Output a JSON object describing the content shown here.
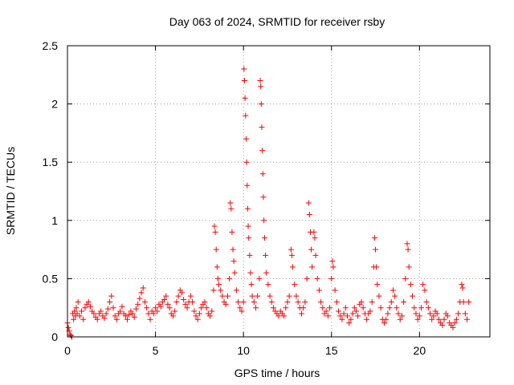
{
  "chart_data": {
    "type": "scatter",
    "title": "Day 063 of 2024, SRMTID for receiver rsby",
    "xlabel": "GPS time / hours",
    "ylabel": "SRMTID / TECUs",
    "xlim": [
      0,
      24
    ],
    "ylim": [
      0,
      2.5
    ],
    "xticks": [
      0,
      5,
      10,
      15,
      20
    ],
    "xtick_labels": [
      "0",
      "5",
      "10",
      "15",
      "20"
    ],
    "yticks": [
      0,
      0.5,
      1,
      1.5,
      2,
      2.5
    ],
    "ytick_labels": [
      "0",
      "0.5",
      "1",
      "1.5",
      "2",
      "2.5"
    ],
    "grid": true,
    "marker": "+",
    "color": "#ff0000",
    "series": [
      {
        "name": "SRMTID",
        "points": [
          [
            0.0,
            0.12
          ],
          [
            0.05,
            0.08
          ],
          [
            0.1,
            0.05
          ],
          [
            0.15,
            0.02
          ],
          [
            0.2,
            0.01
          ],
          [
            0.25,
            0.0
          ],
          [
            0.3,
            0.2
          ],
          [
            0.35,
            0.15
          ],
          [
            0.4,
            0.22
          ],
          [
            0.45,
            0.18
          ],
          [
            0.5,
            0.25
          ],
          [
            0.55,
            0.2
          ],
          [
            0.6,
            0.3
          ],
          [
            0.7,
            0.18
          ],
          [
            0.8,
            0.22
          ],
          [
            0.9,
            0.15
          ],
          [
            1.0,
            0.25
          ],
          [
            1.1,
            0.28
          ],
          [
            1.2,
            0.3
          ],
          [
            1.3,
            0.26
          ],
          [
            1.4,
            0.22
          ],
          [
            1.5,
            0.2
          ],
          [
            1.6,
            0.17
          ],
          [
            1.7,
            0.15
          ],
          [
            1.8,
            0.2
          ],
          [
            1.9,
            0.22
          ],
          [
            2.0,
            0.18
          ],
          [
            2.1,
            0.16
          ],
          [
            2.2,
            0.2
          ],
          [
            2.3,
            0.24
          ],
          [
            2.4,
            0.3
          ],
          [
            2.5,
            0.35
          ],
          [
            2.6,
            0.25
          ],
          [
            2.7,
            0.18
          ],
          [
            2.8,
            0.15
          ],
          [
            2.9,
            0.2
          ],
          [
            3.0,
            0.22
          ],
          [
            3.1,
            0.26
          ],
          [
            3.2,
            0.2
          ],
          [
            3.3,
            0.18
          ],
          [
            3.4,
            0.15
          ],
          [
            3.5,
            0.19
          ],
          [
            3.6,
            0.22
          ],
          [
            3.7,
            0.2
          ],
          [
            3.8,
            0.17
          ],
          [
            3.9,
            0.24
          ],
          [
            4.0,
            0.28
          ],
          [
            4.1,
            0.33
          ],
          [
            4.2,
            0.38
          ],
          [
            4.3,
            0.42
          ],
          [
            4.4,
            0.3
          ],
          [
            4.5,
            0.25
          ],
          [
            4.6,
            0.2
          ],
          [
            4.7,
            0.15
          ],
          [
            4.8,
            0.22
          ],
          [
            4.9,
            0.2
          ],
          [
            5.0,
            0.25
          ],
          [
            5.1,
            0.22
          ],
          [
            5.2,
            0.28
          ],
          [
            5.3,
            0.26
          ],
          [
            5.4,
            0.3
          ],
          [
            5.5,
            0.32
          ],
          [
            5.6,
            0.35
          ],
          [
            5.7,
            0.28
          ],
          [
            5.8,
            0.25
          ],
          [
            5.9,
            0.2
          ],
          [
            6.0,
            0.18
          ],
          [
            6.1,
            0.22
          ],
          [
            6.2,
            0.3
          ],
          [
            6.3,
            0.35
          ],
          [
            6.4,
            0.4
          ],
          [
            6.5,
            0.38
          ],
          [
            6.6,
            0.32
          ],
          [
            6.7,
            0.28
          ],
          [
            6.8,
            0.25
          ],
          [
            6.9,
            0.3
          ],
          [
            7.0,
            0.35
          ],
          [
            7.1,
            0.3
          ],
          [
            7.2,
            0.22
          ],
          [
            7.3,
            0.18
          ],
          [
            7.4,
            0.15
          ],
          [
            7.5,
            0.2
          ],
          [
            7.6,
            0.25
          ],
          [
            7.7,
            0.28
          ],
          [
            7.8,
            0.3
          ],
          [
            7.9,
            0.25
          ],
          [
            8.0,
            0.2
          ],
          [
            8.1,
            0.18
          ],
          [
            8.2,
            0.22
          ],
          [
            8.3,
            0.4
          ],
          [
            8.35,
            0.95
          ],
          [
            8.4,
            0.9
          ],
          [
            8.45,
            0.75
          ],
          [
            8.5,
            0.6
          ],
          [
            8.55,
            0.5
          ],
          [
            8.6,
            0.45
          ],
          [
            8.7,
            0.4
          ],
          [
            8.8,
            0.35
          ],
          [
            8.9,
            0.3
          ],
          [
            9.0,
            0.28
          ],
          [
            9.1,
            0.35
          ],
          [
            9.2,
            0.5
          ],
          [
            9.25,
            1.15
          ],
          [
            9.3,
            1.1
          ],
          [
            9.35,
            0.9
          ],
          [
            9.4,
            0.75
          ],
          [
            9.45,
            0.65
          ],
          [
            9.5,
            0.55
          ],
          [
            9.6,
            0.4
          ],
          [
            9.7,
            0.3
          ],
          [
            9.8,
            0.25
          ],
          [
            9.9,
            0.22
          ],
          [
            10.0,
            0.3
          ],
          [
            10.03,
            2.3
          ],
          [
            10.06,
            2.2
          ],
          [
            10.09,
            2.05
          ],
          [
            10.12,
            1.9
          ],
          [
            10.15,
            1.7
          ],
          [
            10.18,
            1.5
          ],
          [
            10.21,
            1.3
          ],
          [
            10.24,
            1.1
          ],
          [
            10.27,
            0.95
          ],
          [
            10.3,
            0.85
          ],
          [
            10.35,
            0.7
          ],
          [
            10.4,
            0.55
          ],
          [
            10.45,
            0.45
          ],
          [
            10.5,
            0.35
          ],
          [
            10.6,
            0.3
          ],
          [
            10.7,
            0.25
          ],
          [
            10.8,
            0.35
          ],
          [
            10.9,
            0.5
          ],
          [
            10.95,
            2.2
          ],
          [
            10.98,
            2.15
          ],
          [
            11.01,
            2.0
          ],
          [
            11.04,
            1.8
          ],
          [
            11.07,
            1.6
          ],
          [
            11.1,
            1.4
          ],
          [
            11.13,
            1.2
          ],
          [
            11.16,
            1.0
          ],
          [
            11.2,
            0.85
          ],
          [
            11.25,
            0.7
          ],
          [
            11.3,
            0.55
          ],
          [
            11.4,
            0.45
          ],
          [
            11.5,
            0.35
          ],
          [
            11.6,
            0.3
          ],
          [
            11.7,
            0.25
          ],
          [
            11.8,
            0.22
          ],
          [
            11.9,
            0.2
          ],
          [
            12.0,
            0.18
          ],
          [
            12.1,
            0.22
          ],
          [
            12.2,
            0.2
          ],
          [
            12.3,
            0.18
          ],
          [
            12.4,
            0.25
          ],
          [
            12.5,
            0.3
          ],
          [
            12.6,
            0.35
          ],
          [
            12.7,
            0.75
          ],
          [
            12.75,
            0.7
          ],
          [
            12.8,
            0.6
          ],
          [
            12.9,
            0.45
          ],
          [
            13.0,
            0.35
          ],
          [
            13.1,
            0.3
          ],
          [
            13.2,
            0.25
          ],
          [
            13.3,
            0.2
          ],
          [
            13.4,
            0.25
          ],
          [
            13.5,
            0.3
          ],
          [
            13.6,
            0.5
          ],
          [
            13.7,
            1.15
          ],
          [
            13.75,
            1.05
          ],
          [
            13.8,
            0.9
          ],
          [
            13.85,
            0.75
          ],
          [
            13.9,
            0.6
          ],
          [
            14.0,
            0.9
          ],
          [
            14.05,
            0.85
          ],
          [
            14.1,
            0.7
          ],
          [
            14.2,
            0.5
          ],
          [
            14.3,
            0.4
          ],
          [
            14.4,
            0.3
          ],
          [
            14.5,
            0.25
          ],
          [
            14.6,
            0.2
          ],
          [
            14.7,
            0.22
          ],
          [
            14.8,
            0.18
          ],
          [
            14.9,
            0.25
          ],
          [
            15.0,
            0.5
          ],
          [
            15.05,
            0.65
          ],
          [
            15.1,
            0.6
          ],
          [
            15.2,
            0.4
          ],
          [
            15.3,
            0.3
          ],
          [
            15.4,
            0.22
          ],
          [
            15.5,
            0.18
          ],
          [
            15.6,
            0.15
          ],
          [
            15.7,
            0.2
          ],
          [
            15.8,
            0.25
          ],
          [
            15.9,
            0.18
          ],
          [
            16.0,
            0.12
          ],
          [
            16.1,
            0.15
          ],
          [
            16.2,
            0.2
          ],
          [
            16.3,
            0.25
          ],
          [
            16.4,
            0.22
          ],
          [
            16.5,
            0.18
          ],
          [
            16.6,
            0.28
          ],
          [
            16.7,
            0.3
          ],
          [
            16.8,
            0.25
          ],
          [
            16.9,
            0.2
          ],
          [
            17.0,
            0.15
          ],
          [
            17.1,
            0.2
          ],
          [
            17.2,
            0.22
          ],
          [
            17.3,
            0.3
          ],
          [
            17.4,
            0.6
          ],
          [
            17.45,
            0.85
          ],
          [
            17.5,
            0.75
          ],
          [
            17.55,
            0.6
          ],
          [
            17.6,
            0.45
          ],
          [
            17.7,
            0.35
          ],
          [
            17.8,
            0.25
          ],
          [
            17.9,
            0.15
          ],
          [
            18.0,
            0.12
          ],
          [
            18.1,
            0.15
          ],
          [
            18.2,
            0.2
          ],
          [
            18.3,
            0.25
          ],
          [
            18.4,
            0.3
          ],
          [
            18.5,
            0.4
          ],
          [
            18.6,
            0.35
          ],
          [
            18.7,
            0.25
          ],
          [
            18.8,
            0.2
          ],
          [
            18.9,
            0.15
          ],
          [
            19.0,
            0.18
          ],
          [
            19.1,
            0.3
          ],
          [
            19.2,
            0.5
          ],
          [
            19.3,
            0.8
          ],
          [
            19.35,
            0.75
          ],
          [
            19.4,
            0.6
          ],
          [
            19.5,
            0.45
          ],
          [
            19.6,
            0.35
          ],
          [
            19.7,
            0.25
          ],
          [
            19.8,
            0.2
          ],
          [
            19.9,
            0.15
          ],
          [
            20.0,
            0.18
          ],
          [
            20.1,
            0.25
          ],
          [
            20.2,
            0.45
          ],
          [
            20.3,
            0.4
          ],
          [
            20.4,
            0.3
          ],
          [
            20.5,
            0.25
          ],
          [
            20.6,
            0.2
          ],
          [
            20.7,
            0.15
          ],
          [
            20.8,
            0.18
          ],
          [
            20.9,
            0.22
          ],
          [
            21.0,
            0.2
          ],
          [
            21.1,
            0.15
          ],
          [
            21.2,
            0.12
          ],
          [
            21.3,
            0.1
          ],
          [
            21.4,
            0.15
          ],
          [
            21.5,
            0.2
          ],
          [
            21.6,
            0.18
          ],
          [
            21.7,
            0.12
          ],
          [
            21.8,
            0.1
          ],
          [
            21.9,
            0.08
          ],
          [
            22.0,
            0.12
          ],
          [
            22.1,
            0.15
          ],
          [
            22.2,
            0.2
          ],
          [
            22.3,
            0.3
          ],
          [
            22.4,
            0.45
          ],
          [
            22.45,
            0.42
          ],
          [
            22.5,
            0.3
          ],
          [
            22.6,
            0.2
          ],
          [
            22.7,
            0.15
          ],
          [
            22.8,
            0.3
          ]
        ]
      }
    ]
  }
}
